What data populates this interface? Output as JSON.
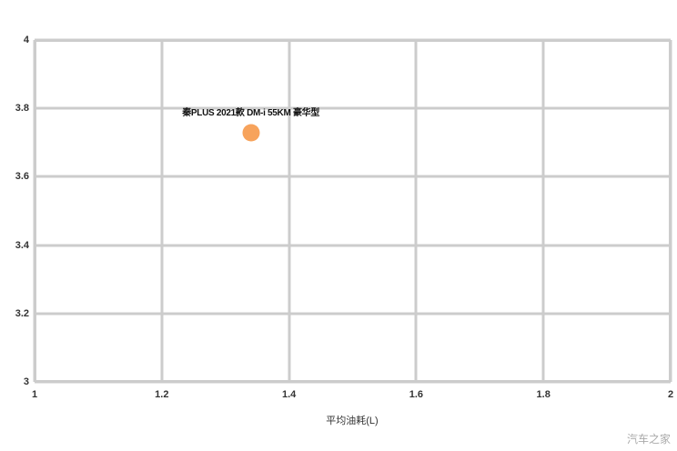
{
  "chart_data": {
    "type": "scatter",
    "title": "",
    "xlabel": "平均油耗(L)",
    "ylabel": "",
    "xlim": [
      1,
      2
    ],
    "ylim": [
      3,
      4
    ],
    "x_tick_values": [
      1,
      1.2,
      1.4,
      1.6,
      1.8,
      2
    ],
    "x_tick_labels": [
      "1",
      "1.2",
      "1.4",
      "1.6",
      "1.8",
      "2"
    ],
    "y_tick_values": [
      3,
      3.2,
      3.4,
      3.6,
      3.8,
      4
    ],
    "y_tick_labels": [
      "3",
      "3.2",
      "3.4",
      "3.6",
      "3.8",
      "4"
    ],
    "grid": true,
    "legend_position": "none",
    "series": [
      {
        "color": "#f7a35c",
        "points": [
          {
            "x": 1.34,
            "y": 3.73,
            "label": "秦PLUS 2021款 DM-i 55KM 豪华型"
          }
        ]
      }
    ]
  },
  "watermark": "汽车之家",
  "colors": {
    "background": "#ffffff",
    "grid": "#cccccc",
    "tick_text": "#333333",
    "point": "#f7a35c",
    "point_label": "#111111",
    "watermark": "#aaaaaa"
  }
}
